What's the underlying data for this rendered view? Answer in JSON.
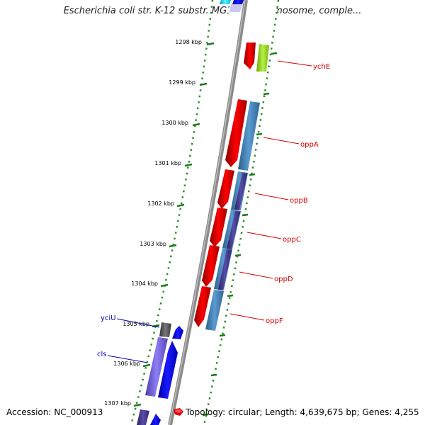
{
  "title": "Escherichia coli str. K-12 substr. MG1655 chromosome, comple...",
  "accession": "Accession: NC_000913",
  "topology": "Topology: circular; Length: 4,639,675 bp; Genes: 4,255",
  "colors": {
    "backbone": "#8a8a8a",
    "dots": "#2e8b2e",
    "tick": "#1e7a1e",
    "label_red": "#d40000",
    "label_blue": "#0000aa",
    "red_gene": "#ff0000",
    "steel_gene": "#4682b4",
    "navy_gene": "#483d8b",
    "blue_gene": "#0000ff",
    "purple_gene": "#7b68ee",
    "gray_gene": "#555555",
    "lime_gene": "#a6e22e",
    "cyan_gene": "#00e5ff"
  },
  "ticks": [
    {
      "label": "1298 kbp"
    },
    {
      "label": "1299 kbp"
    },
    {
      "label": "1300 kbp"
    },
    {
      "label": "1301 kbp"
    },
    {
      "label": "1302 kbp"
    },
    {
      "label": "1303 kbp"
    },
    {
      "label": "1304 kbp"
    },
    {
      "label": "1305 kbp"
    },
    {
      "label": "1306 kbp"
    },
    {
      "label": "1307 kbp"
    }
  ],
  "gene_labels": [
    {
      "text": "ychE",
      "color": "#d40000"
    },
    {
      "text": "oppA",
      "color": "#d40000"
    },
    {
      "text": "oppB",
      "color": "#d40000"
    },
    {
      "text": "oppC",
      "color": "#d40000"
    },
    {
      "text": "oppD",
      "color": "#d40000"
    },
    {
      "text": "oppF",
      "color": "#d40000"
    },
    {
      "text": "yciU",
      "color": "#0000aa"
    },
    {
      "text": "cls",
      "color": "#0000aa"
    }
  ]
}
